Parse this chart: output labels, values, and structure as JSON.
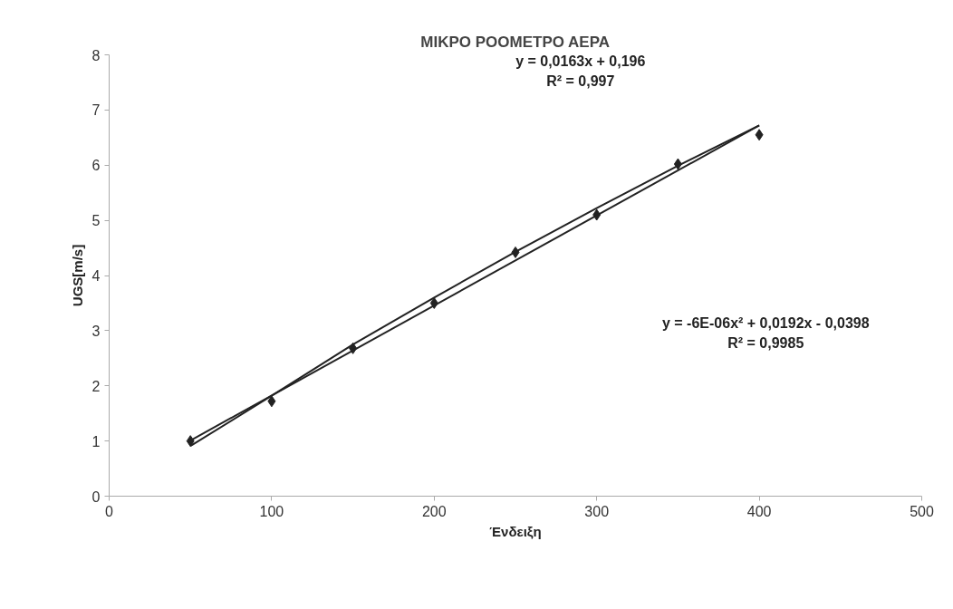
{
  "chart_data": {
    "type": "scatter",
    "title": "ΜΙΚΡΟ ΡΟΟΜΕΤΡΟ ΑΕΡΑ",
    "xlabel": "Ένδειξη",
    "ylabel": "UGS[m/s]",
    "xlim": [
      0,
      500
    ],
    "ylim": [
      0,
      8
    ],
    "xticks": [
      0,
      100,
      200,
      300,
      400,
      500
    ],
    "yticks": [
      0,
      1,
      2,
      3,
      4,
      5,
      6,
      7,
      8
    ],
    "grid": false,
    "x": [
      50,
      100,
      150,
      200,
      250,
      300,
      350,
      400
    ],
    "series": [
      {
        "marker": "diamond",
        "color": "#222222",
        "values": [
          1.0,
          1.72,
          2.68,
          3.5,
          4.42,
          5.1,
          6.02,
          6.55
        ]
      },
      {
        "type": "line",
        "color": "#222222",
        "x": [
          50,
          400
        ],
        "values": [
          1.01,
          6.72
        ]
      },
      {
        "type": "line",
        "color": "#222222",
        "x": [
          50,
          100,
          150,
          200,
          250,
          300,
          350,
          400
        ],
        "values": [
          0.91,
          1.82,
          2.75,
          3.6,
          4.43,
          5.22,
          5.99,
          6.72
        ]
      }
    ],
    "annotations": [
      "y = 0,0163x + 0,196\nR² = 0,997",
      "y = -6E-06x² + 0,0192x - 0,0398\nR² = 0,9985"
    ]
  }
}
